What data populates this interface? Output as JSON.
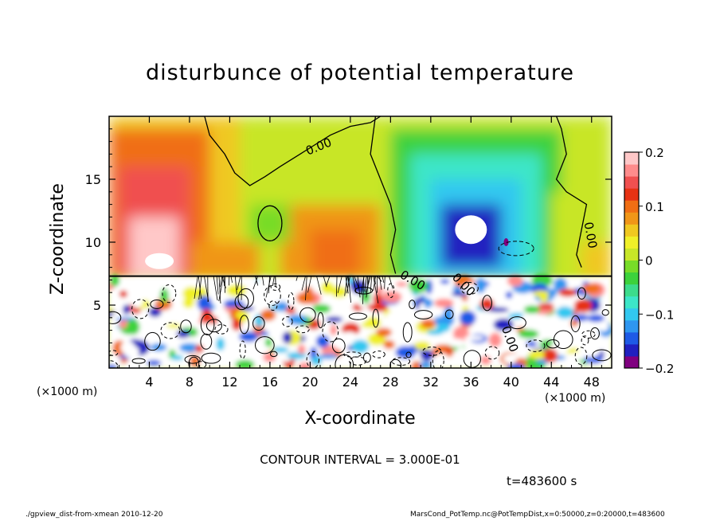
{
  "chart_data": {
    "type": "heatmap",
    "title": "disturbunce of potential temperature",
    "xlabel": "X-coordinate",
    "ylabel": "Z-coordinate",
    "x_unit": "(×1000 m)",
    "x_unit_secondary": "(×1000 m)",
    "xlim": [
      0,
      50
    ],
    "ylim": [
      0,
      20
    ],
    "x_ticks": [
      "4",
      "8",
      "12",
      "16",
      "20",
      "24",
      "28",
      "32",
      "36",
      "40",
      "44",
      "48"
    ],
    "x_tick_values": [
      4,
      8,
      12,
      16,
      20,
      24,
      28,
      32,
      36,
      40,
      44,
      48
    ],
    "y_ticks": [
      "5",
      "10",
      "15"
    ],
    "y_tick_values": [
      5,
      10,
      15
    ],
    "colorbar": {
      "range": [
        -0.2,
        0.2
      ],
      "tick_labels": [
        "0.2",
        "0.1",
        "0",
        "−0.1",
        "−0.2"
      ],
      "tick_values": [
        0.2,
        0.1,
        0,
        -0.1,
        -0.2
      ],
      "colors": [
        "#800080",
        "#2020c0",
        "#1e5ae6",
        "#2e96f0",
        "#32c8f0",
        "#3ce6c8",
        "#3cdc8c",
        "#3cd23c",
        "#78dc28",
        "#c8e628",
        "#f0f028",
        "#f0c820",
        "#f09618",
        "#f06e14",
        "#e63214",
        "#f05050",
        "#ff8c8c",
        "#ffc8c8"
      ]
    },
    "contour_labels": [
      "0.00",
      "0.00",
      "0.00",
      "0.00",
      "0.00"
    ],
    "contour_interval": "CONTOUR INTERVAL = 3.000E-01",
    "features": [
      {
        "x": 5,
        "z": 11,
        "value": 0.2
      },
      {
        "x": 34,
        "z": 11,
        "value": -0.2
      },
      {
        "x": 20,
        "z": 16,
        "value": 0.0
      },
      {
        "x": 22,
        "z": 10,
        "value": 0.12
      }
    ]
  },
  "time_label": "t=483600 s",
  "footer": {
    "left": "./gpview_dist-from-xmean   2010-12-20",
    "right": "MarsCond_PotTemp.nc@PotTempDist,x=0:50000,z=0:20000,t=483600"
  }
}
